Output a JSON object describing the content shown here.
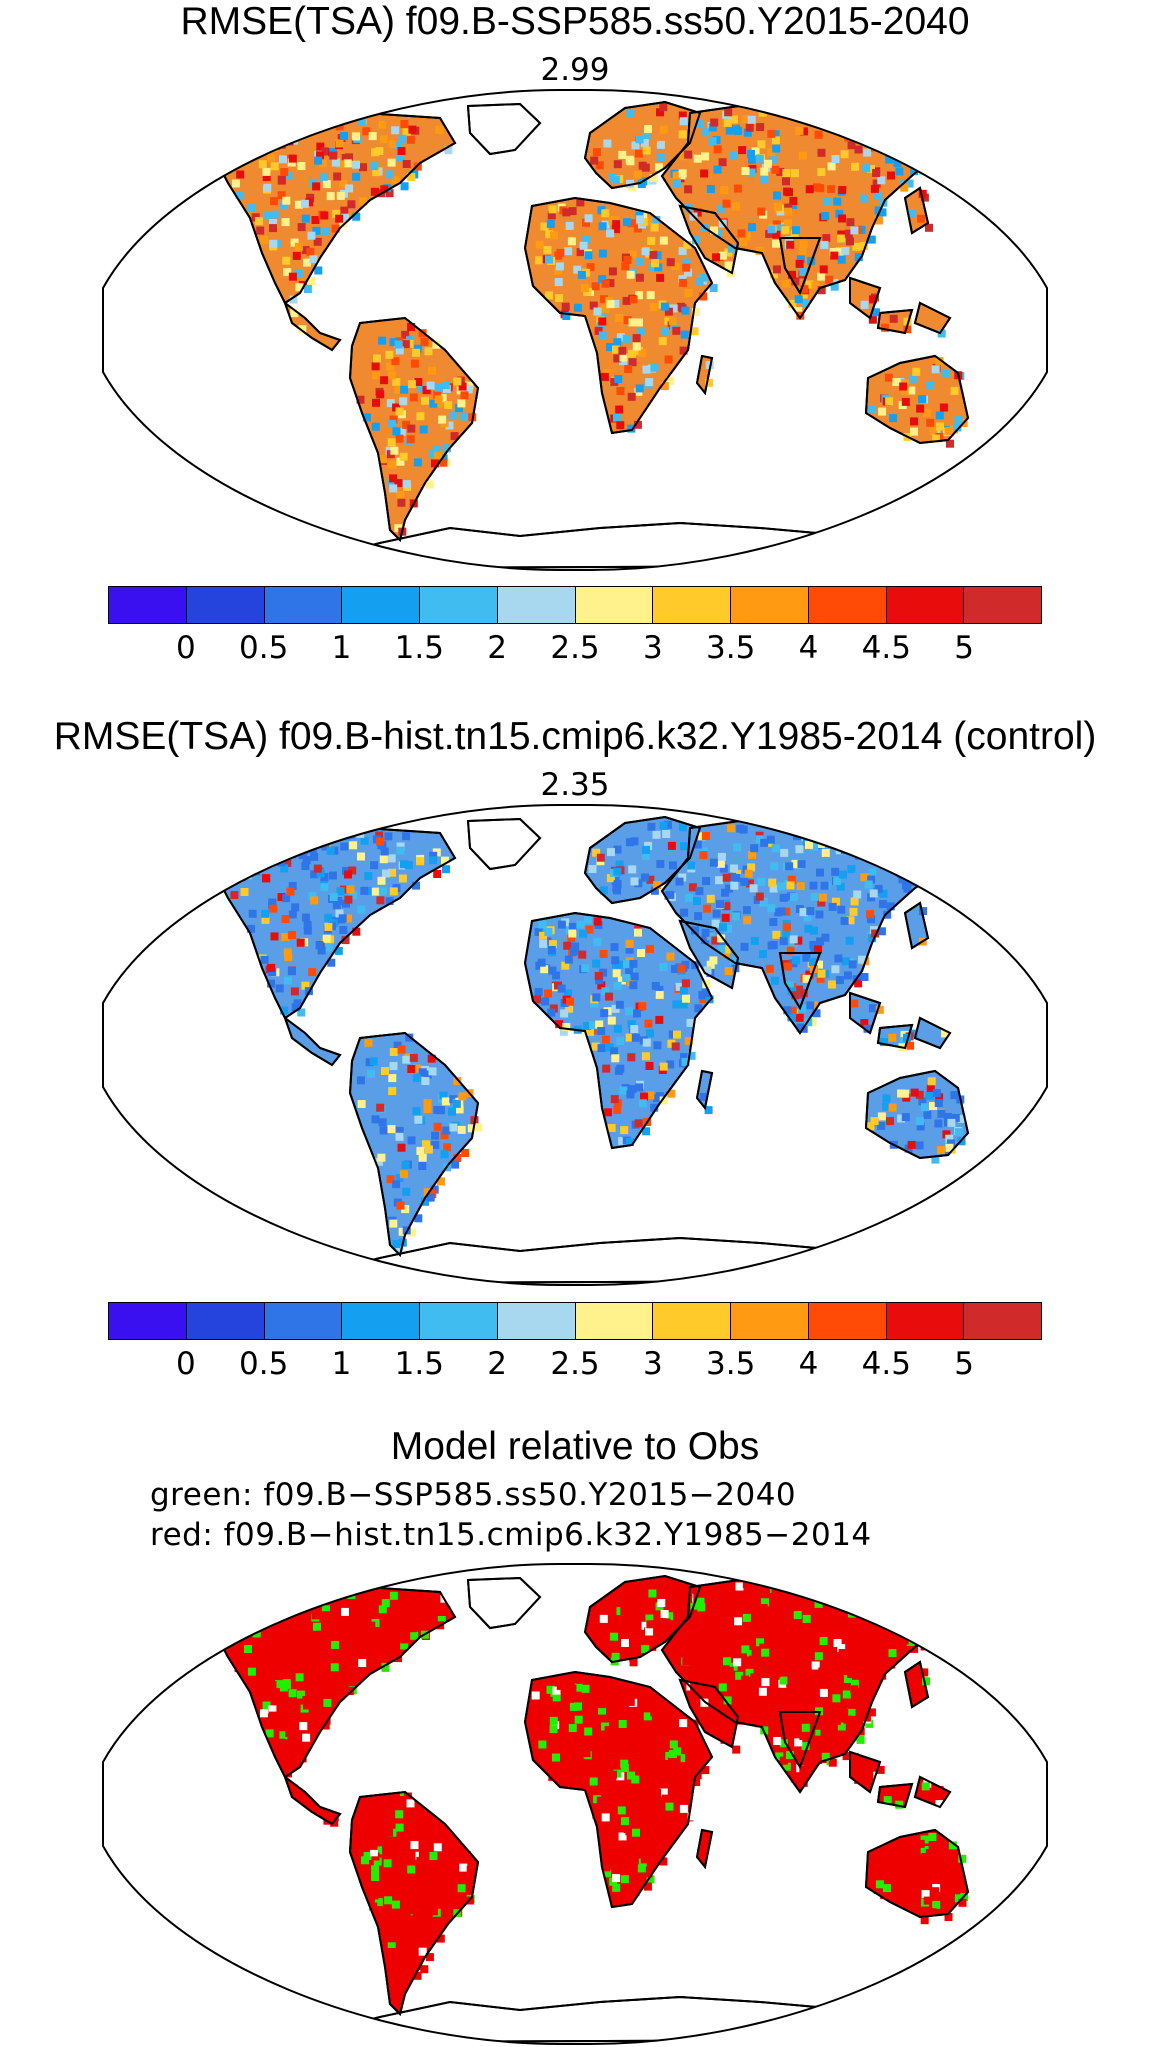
{
  "panels": [
    {
      "title": "RMSE(TSA) f09.B-SSP585.ss50.Y2015-2040",
      "global_value": "2.99"
    },
    {
      "title": "RMSE(TSA) f09.B-hist.tn15.cmip6.k32.Y1985-2014 (control)",
      "global_value": "2.35"
    },
    {
      "title": "Model relative to Obs",
      "lines": [
        "green: f09.B−SSP585.ss50.Y2015−2040",
        "red: f09.B−hist.tn15.cmip6.k32.Y1985−2014"
      ]
    }
  ],
  "colorbar": {
    "colors": [
      "#3b10f0",
      "#2444dd",
      "#2f75e8",
      "#159ff0",
      "#40bcf0",
      "#a8d8f0",
      "#fff28c",
      "#ffca2a",
      "#ff9a12",
      "#ff4b05",
      "#e80c0c",
      "#d02a2a"
    ],
    "tick_labels": [
      "0",
      "0.5",
      "1",
      "1.5",
      "2",
      "2.5",
      "3",
      "3.5",
      "4",
      "4.5",
      "5"
    ]
  },
  "map_colors": {
    "panel1_land": "#f08a30",
    "panel2_land": "#5a9ee8",
    "panel3_land": "#ee0000",
    "panel3_better": "#22ee00",
    "outline": "#000000"
  }
}
